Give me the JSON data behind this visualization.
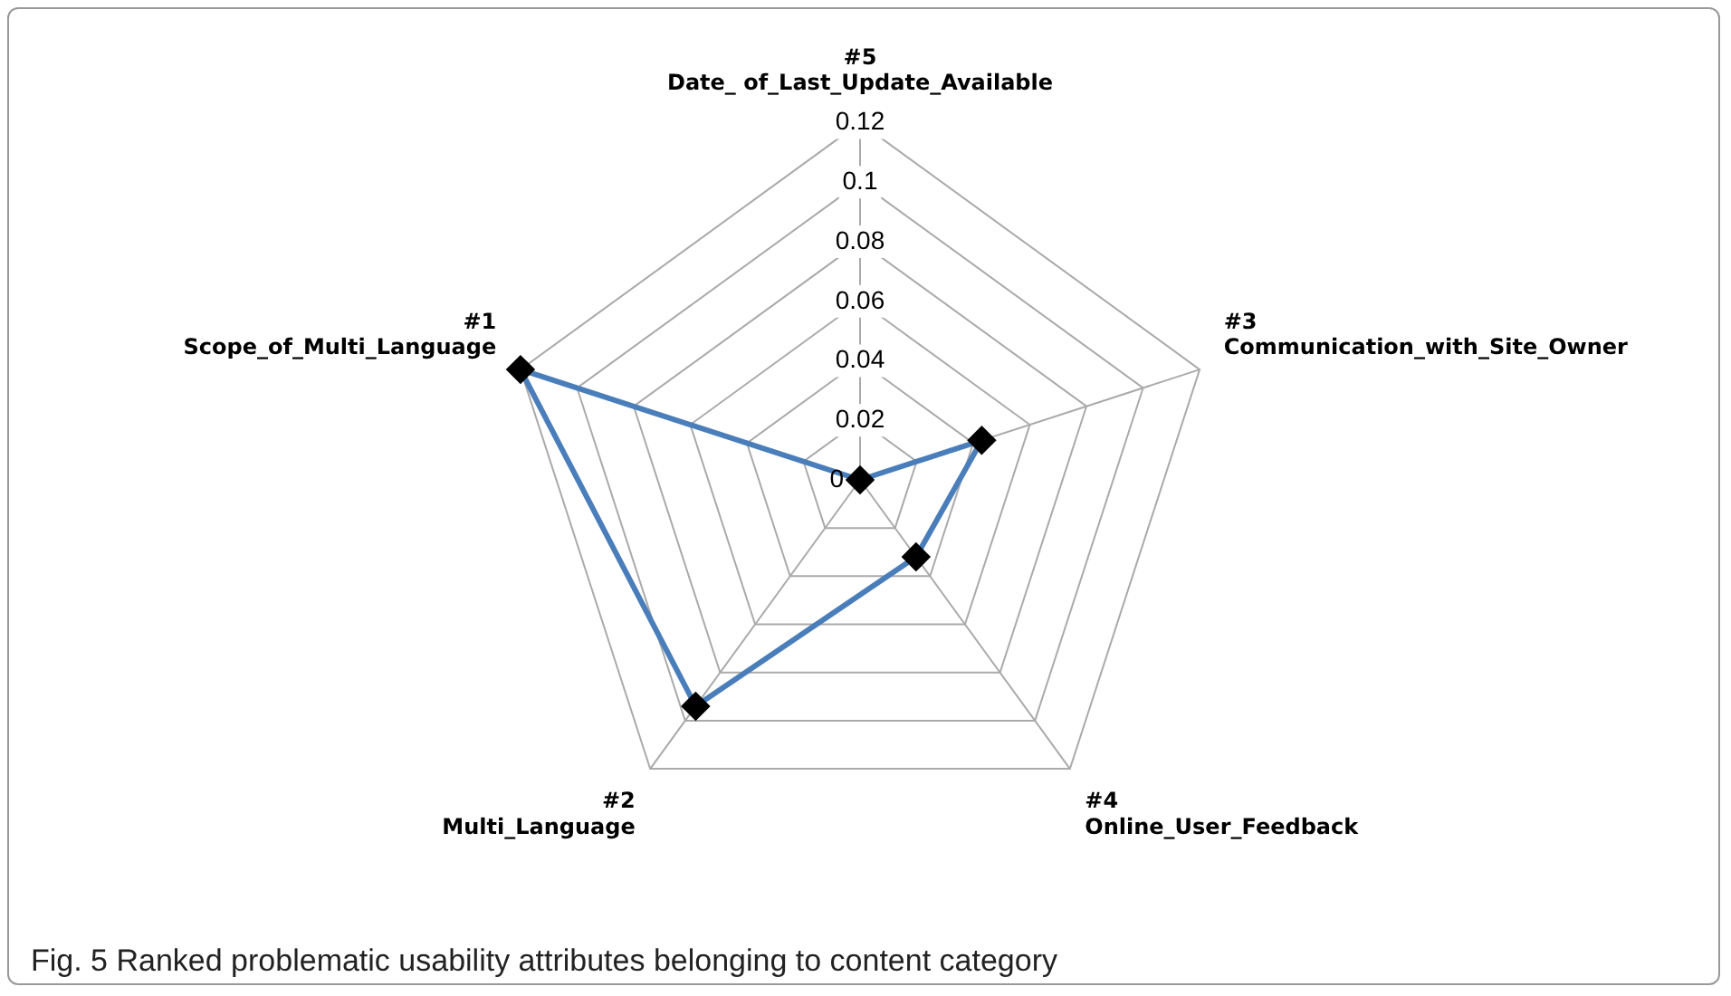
{
  "chart_data": {
    "type": "radar",
    "categories": [
      "#5\nDate_ of_Last_Update_Available",
      "#3\nCommunication_with_Site_Owner",
      "#4\nOnline_User_Feedback",
      "#2\nMulti_Language",
      "#1\nScope_of_Multi_Language"
    ],
    "series": [
      {
        "color": "#4a7ebb",
        "values": [
          0,
          0.043,
          0.032,
          0.094,
          0.12
        ]
      }
    ],
    "ylim": [
      0,
      0.12
    ],
    "yticks": [
      0,
      0.02,
      0.04,
      0.06,
      0.08,
      0.1,
      0.12
    ],
    "grid": true,
    "legend": false,
    "marker": "diamond",
    "line_style": "solid",
    "annotations": [
      "Fig. 5  Ranked problematic usability attributes belonging to content category"
    ]
  }
}
